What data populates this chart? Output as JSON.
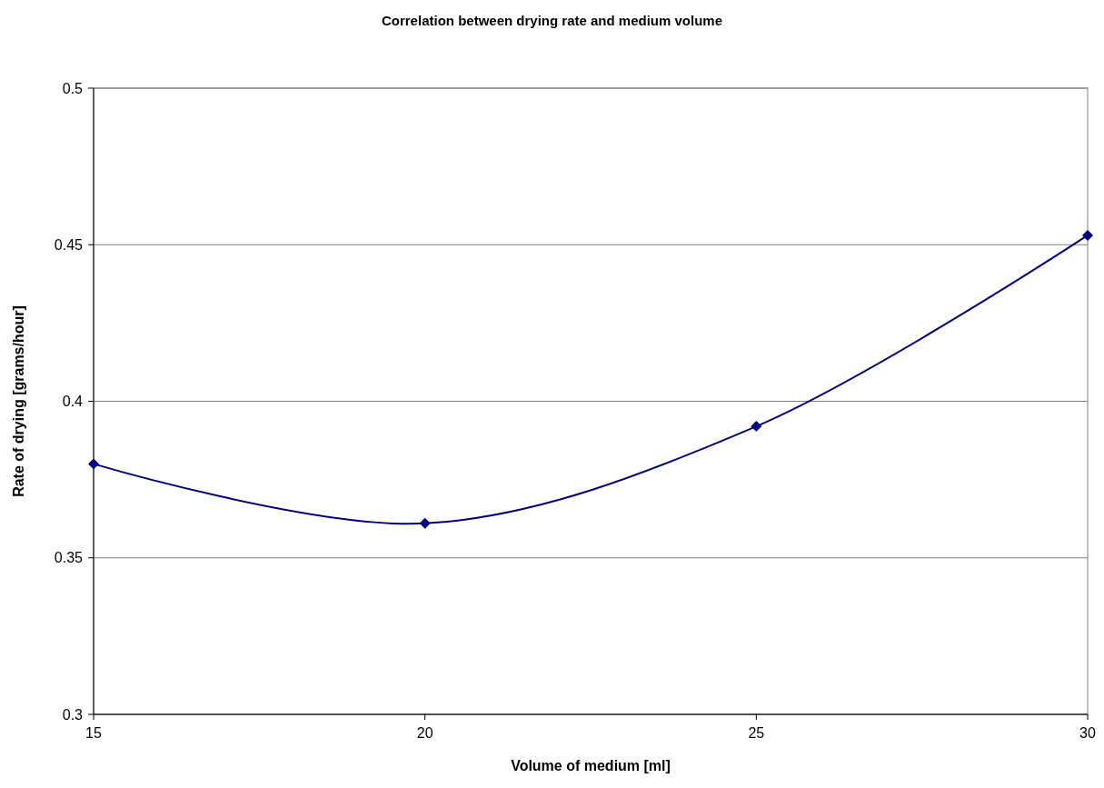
{
  "chart_data": {
    "type": "line",
    "title": "Correlation between drying rate and medium volume",
    "xlabel": "Volume of medium [ml]",
    "ylabel": "Rate of drying [grams/hour]",
    "x": [
      15,
      20,
      25,
      30
    ],
    "series": [
      {
        "color": "#000080",
        "values": [
          0.38,
          0.361,
          0.392,
          0.453
        ]
      }
    ],
    "xlim": [
      15,
      30
    ],
    "xticks": [
      15,
      20,
      25,
      30
    ],
    "ylim": [
      0.3,
      0.5
    ],
    "yticks": [
      0.3,
      0.35,
      0.4,
      0.45,
      0.5
    ],
    "grid": "y",
    "marker": "diamond",
    "line_style": "solid"
  }
}
